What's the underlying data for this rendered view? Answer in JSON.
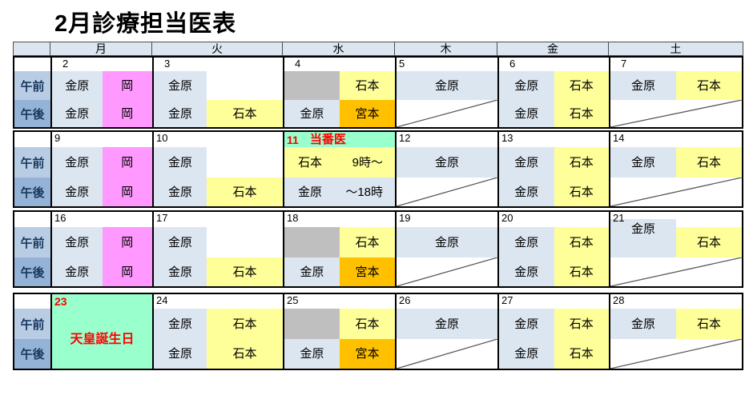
{
  "title": "2月診療担当医表",
  "weekday_header": [
    "月",
    "火",
    "水",
    "木",
    "金",
    "土"
  ],
  "row_labels": {
    "am": "午前",
    "pm": "午後"
  },
  "colors": {
    "cell_blue": "#DCE6F1",
    "pink": "#FF99FF",
    "yellow": "#FFFF99",
    "orange": "#FFC000",
    "gray": "#BFBFBF",
    "green": "#99FFCC",
    "white": "#FFFFFF",
    "red": "#FF0000",
    "am_label_bg": "#B8CCE4",
    "pm_label_bg": "#95B3D7",
    "header_bg": "#DCE6F1",
    "label_text": "#17375E",
    "diagonal": "#595959"
  },
  "weeks": [
    {
      "days": [
        {
          "date": "2",
          "indent": true,
          "am": {
            "type": "split",
            "cells": [
              {
                "text": "金原",
                "bg": "cell_blue"
              },
              {
                "text": "岡",
                "bg": "pink"
              }
            ]
          },
          "pm": {
            "type": "split",
            "cells": [
              {
                "text": "金原",
                "bg": "cell_blue"
              },
              {
                "text": "岡",
                "bg": "pink"
              }
            ]
          }
        },
        {
          "date": "3",
          "indent": true,
          "am": {
            "type": "split",
            "cells": [
              {
                "text": "金原",
                "bg": "cell_blue"
              },
              {
                "text": "",
                "bg": "white"
              }
            ]
          },
          "pm": {
            "type": "split",
            "cells": [
              {
                "text": "金原",
                "bg": "cell_blue"
              },
              {
                "text": "石本",
                "bg": "yellow"
              }
            ]
          }
        },
        {
          "date": "4",
          "indent": true,
          "am": {
            "type": "split",
            "cells": [
              {
                "text": "",
                "bg": "gray"
              },
              {
                "text": "石本",
                "bg": "yellow"
              }
            ]
          },
          "pm": {
            "type": "split",
            "cells": [
              {
                "text": "金原",
                "bg": "cell_blue"
              },
              {
                "text": "宮本",
                "bg": "orange"
              }
            ]
          }
        },
        {
          "date": "5",
          "am": {
            "type": "full",
            "text": "金原",
            "bg": "cell_blue"
          },
          "pm": {
            "type": "diag"
          }
        },
        {
          "date": "6",
          "indent": true,
          "am": {
            "type": "split",
            "cells": [
              {
                "text": "金原",
                "bg": "cell_blue"
              },
              {
                "text": "石本",
                "bg": "yellow"
              }
            ]
          },
          "pm": {
            "type": "split",
            "cells": [
              {
                "text": "金原",
                "bg": "cell_blue"
              },
              {
                "text": "石本",
                "bg": "yellow"
              }
            ]
          }
        },
        {
          "date": "7",
          "indent": true,
          "am": {
            "type": "split",
            "cells": [
              {
                "text": "金原",
                "bg": "cell_blue"
              },
              {
                "text": "石本",
                "bg": "yellow"
              }
            ]
          },
          "pm": {
            "type": "diag"
          }
        }
      ]
    },
    {
      "days": [
        {
          "date": "9",
          "am": {
            "type": "split",
            "cells": [
              {
                "text": "金原",
                "bg": "cell_blue"
              },
              {
                "text": "岡",
                "bg": "pink"
              }
            ]
          },
          "pm": {
            "type": "split",
            "cells": [
              {
                "text": "金原",
                "bg": "cell_blue"
              },
              {
                "text": "岡",
                "bg": "pink"
              }
            ]
          }
        },
        {
          "date": "10",
          "am": {
            "type": "split",
            "cells": [
              {
                "text": "金原",
                "bg": "cell_blue"
              },
              {
                "text": "",
                "bg": "white"
              }
            ]
          },
          "pm": {
            "type": "split",
            "cells": [
              {
                "text": "金原",
                "bg": "cell_blue"
              },
              {
                "text": "石本",
                "bg": "yellow"
              }
            ]
          }
        },
        {
          "date": "11",
          "banner": "当番医",
          "am": {
            "type": "duo",
            "left": "石本",
            "right": "9時〜",
            "bg": "yellow"
          },
          "pm": {
            "type": "duo",
            "left": "金原",
            "right": "〜18時",
            "bg": "cell_blue"
          }
        },
        {
          "date": "12",
          "am": {
            "type": "full",
            "text": "金原",
            "bg": "cell_blue"
          },
          "pm": {
            "type": "diag"
          }
        },
        {
          "date": "13",
          "am": {
            "type": "split",
            "cells": [
              {
                "text": "金原",
                "bg": "cell_blue"
              },
              {
                "text": "石本",
                "bg": "yellow"
              }
            ]
          },
          "pm": {
            "type": "split",
            "cells": [
              {
                "text": "金原",
                "bg": "cell_blue"
              },
              {
                "text": "石本",
                "bg": "yellow"
              }
            ]
          }
        },
        {
          "date": "14",
          "am": {
            "type": "split",
            "cells": [
              {
                "text": "金原",
                "bg": "cell_blue"
              },
              {
                "text": "石本",
                "bg": "yellow"
              }
            ]
          },
          "pm": {
            "type": "diag"
          }
        }
      ]
    },
    {
      "days": [
        {
          "date": "16",
          "am": {
            "type": "split",
            "cells": [
              {
                "text": "金原",
                "bg": "cell_blue"
              },
              {
                "text": "岡",
                "bg": "pink"
              }
            ]
          },
          "pm": {
            "type": "split",
            "cells": [
              {
                "text": "金原",
                "bg": "cell_blue"
              },
              {
                "text": "岡",
                "bg": "pink"
              }
            ]
          }
        },
        {
          "date": "17",
          "am": {
            "type": "split",
            "cells": [
              {
                "text": "金原",
                "bg": "cell_blue"
              },
              {
                "text": "",
                "bg": "white"
              }
            ]
          },
          "pm": {
            "type": "split",
            "cells": [
              {
                "text": "金原",
                "bg": "cell_blue"
              },
              {
                "text": "石本",
                "bg": "yellow"
              }
            ]
          }
        },
        {
          "date": "18",
          "am": {
            "type": "split",
            "cells": [
              {
                "text": "",
                "bg": "gray"
              },
              {
                "text": "石本",
                "bg": "yellow"
              }
            ]
          },
          "pm": {
            "type": "split",
            "cells": [
              {
                "text": "金原",
                "bg": "cell_blue"
              },
              {
                "text": "宮本",
                "bg": "orange"
              }
            ]
          }
        },
        {
          "date": "19",
          "am": {
            "type": "full",
            "text": "金原",
            "bg": "cell_blue"
          },
          "pm": {
            "type": "diag"
          }
        },
        {
          "date": "20",
          "am": {
            "type": "split",
            "cells": [
              {
                "text": "金原",
                "bg": "cell_blue"
              },
              {
                "text": "石本",
                "bg": "yellow"
              }
            ]
          },
          "pm": {
            "type": "split",
            "cells": [
              {
                "text": "金原",
                "bg": "cell_blue"
              },
              {
                "text": "石本",
                "bg": "yellow"
              }
            ]
          }
        },
        {
          "date": "21",
          "raised_left": true,
          "am": {
            "type": "split",
            "cells": [
              {
                "text": "金原",
                "bg": "cell_blue"
              },
              {
                "text": "石本",
                "bg": "yellow"
              }
            ]
          },
          "pm": {
            "type": "diag"
          }
        }
      ]
    },
    {
      "days": [
        {
          "date": "23",
          "holiday": "天皇誕生日"
        },
        {
          "date": "24",
          "am": {
            "type": "split",
            "cells": [
              {
                "text": "金原",
                "bg": "cell_blue"
              },
              {
                "text": "石本",
                "bg": "yellow"
              }
            ]
          },
          "pm": {
            "type": "split",
            "cells": [
              {
                "text": "金原",
                "bg": "cell_blue"
              },
              {
                "text": "石本",
                "bg": "yellow"
              }
            ]
          }
        },
        {
          "date": "25",
          "am": {
            "type": "split",
            "cells": [
              {
                "text": "",
                "bg": "gray"
              },
              {
                "text": "石本",
                "bg": "yellow"
              }
            ]
          },
          "pm": {
            "type": "split",
            "cells": [
              {
                "text": "金原",
                "bg": "cell_blue"
              },
              {
                "text": "宮本",
                "bg": "orange"
              }
            ]
          }
        },
        {
          "date": "26",
          "am": {
            "type": "full",
            "text": "金原",
            "bg": "cell_blue"
          },
          "pm": {
            "type": "diag"
          }
        },
        {
          "date": "27",
          "am": {
            "type": "split",
            "cells": [
              {
                "text": "金原",
                "bg": "cell_blue"
              },
              {
                "text": "石本",
                "bg": "yellow"
              }
            ]
          },
          "pm": {
            "type": "split",
            "cells": [
              {
                "text": "金原",
                "bg": "cell_blue"
              },
              {
                "text": "石本",
                "bg": "yellow"
              }
            ]
          }
        },
        {
          "date": "28",
          "am": {
            "type": "split",
            "cells": [
              {
                "text": "金原",
                "bg": "cell_blue"
              },
              {
                "text": "石本",
                "bg": "yellow"
              }
            ]
          },
          "pm": {
            "type": "diag"
          }
        }
      ]
    }
  ]
}
